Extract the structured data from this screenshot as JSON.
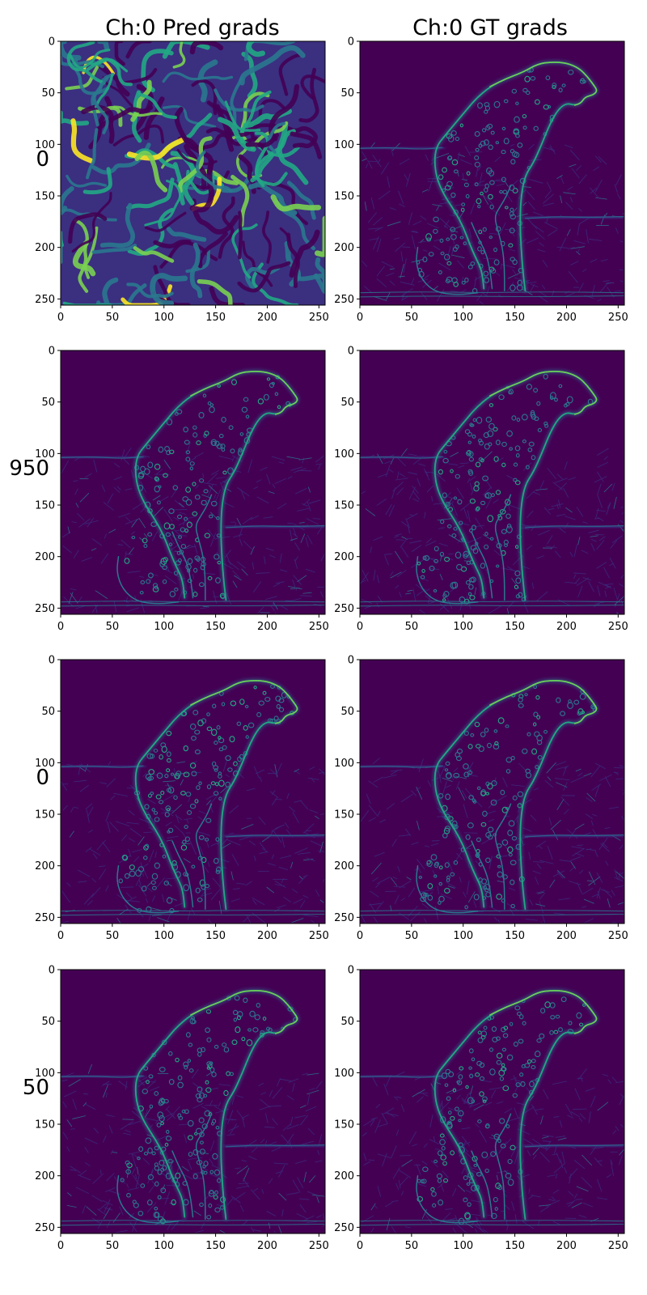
{
  "chart_data": {
    "type": "heatmap",
    "title": "",
    "columns": [
      "Ch:0 Pred grads",
      "Ch:0 GT grads"
    ],
    "rows": [
      "0",
      "950",
      "0",
      "50"
    ],
    "image_size": [
      256,
      256
    ],
    "xlim": [
      0,
      256
    ],
    "ylim": [
      256,
      0
    ],
    "xticks": [
      0,
      50,
      100,
      150,
      200,
      250
    ],
    "yticks": [
      0,
      50,
      100,
      150,
      200,
      250
    ],
    "grid": false,
    "colormap": "viridis",
    "colors": {
      "background": "#440154",
      "low": "#3b2f80",
      "mid": "#2a788e",
      "high": "#22a884",
      "peak": "#7ad151",
      "max": "#fde725"
    },
    "panels": [
      {
        "row": 0,
        "col": 0,
        "content": "noise-gradients"
      },
      {
        "row": 0,
        "col": 1,
        "content": "cheetah-gradients"
      },
      {
        "row": 1,
        "col": 0,
        "content": "cheetah-gradients"
      },
      {
        "row": 1,
        "col": 1,
        "content": "cheetah-gradients"
      },
      {
        "row": 2,
        "col": 0,
        "content": "cheetah-gradients"
      },
      {
        "row": 2,
        "col": 1,
        "content": "cheetah-gradients"
      },
      {
        "row": 3,
        "col": 0,
        "content": "cheetah-gradients"
      },
      {
        "row": 3,
        "col": 1,
        "content": "cheetah-gradients"
      }
    ]
  }
}
